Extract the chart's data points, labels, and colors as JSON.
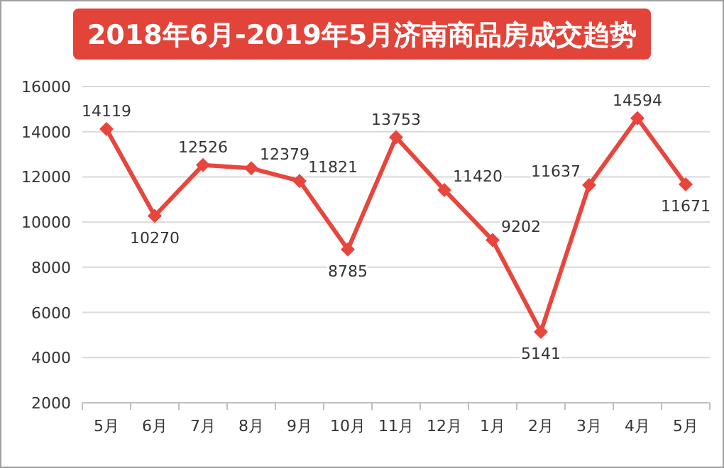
{
  "chart_data": {
    "type": "line",
    "title": "2018年6月-2019年5月济南商品房成交趋势",
    "categories": [
      "5月",
      "6月",
      "7月",
      "8月",
      "9月",
      "10月",
      "11月",
      "12月",
      "1月",
      "2月",
      "3月",
      "4月",
      "5月"
    ],
    "values": [
      14119,
      10270,
      12526,
      12379,
      11821,
      8785,
      13753,
      11420,
      9202,
      5141,
      11637,
      14594,
      11671
    ],
    "color": "#e8453c",
    "ylim": [
      2000,
      16000
    ],
    "yticks": [
      2000,
      4000,
      6000,
      8000,
      10000,
      12000,
      14000,
      16000
    ],
    "grid": "y",
    "marker": "diamond",
    "data_labels": true
  }
}
